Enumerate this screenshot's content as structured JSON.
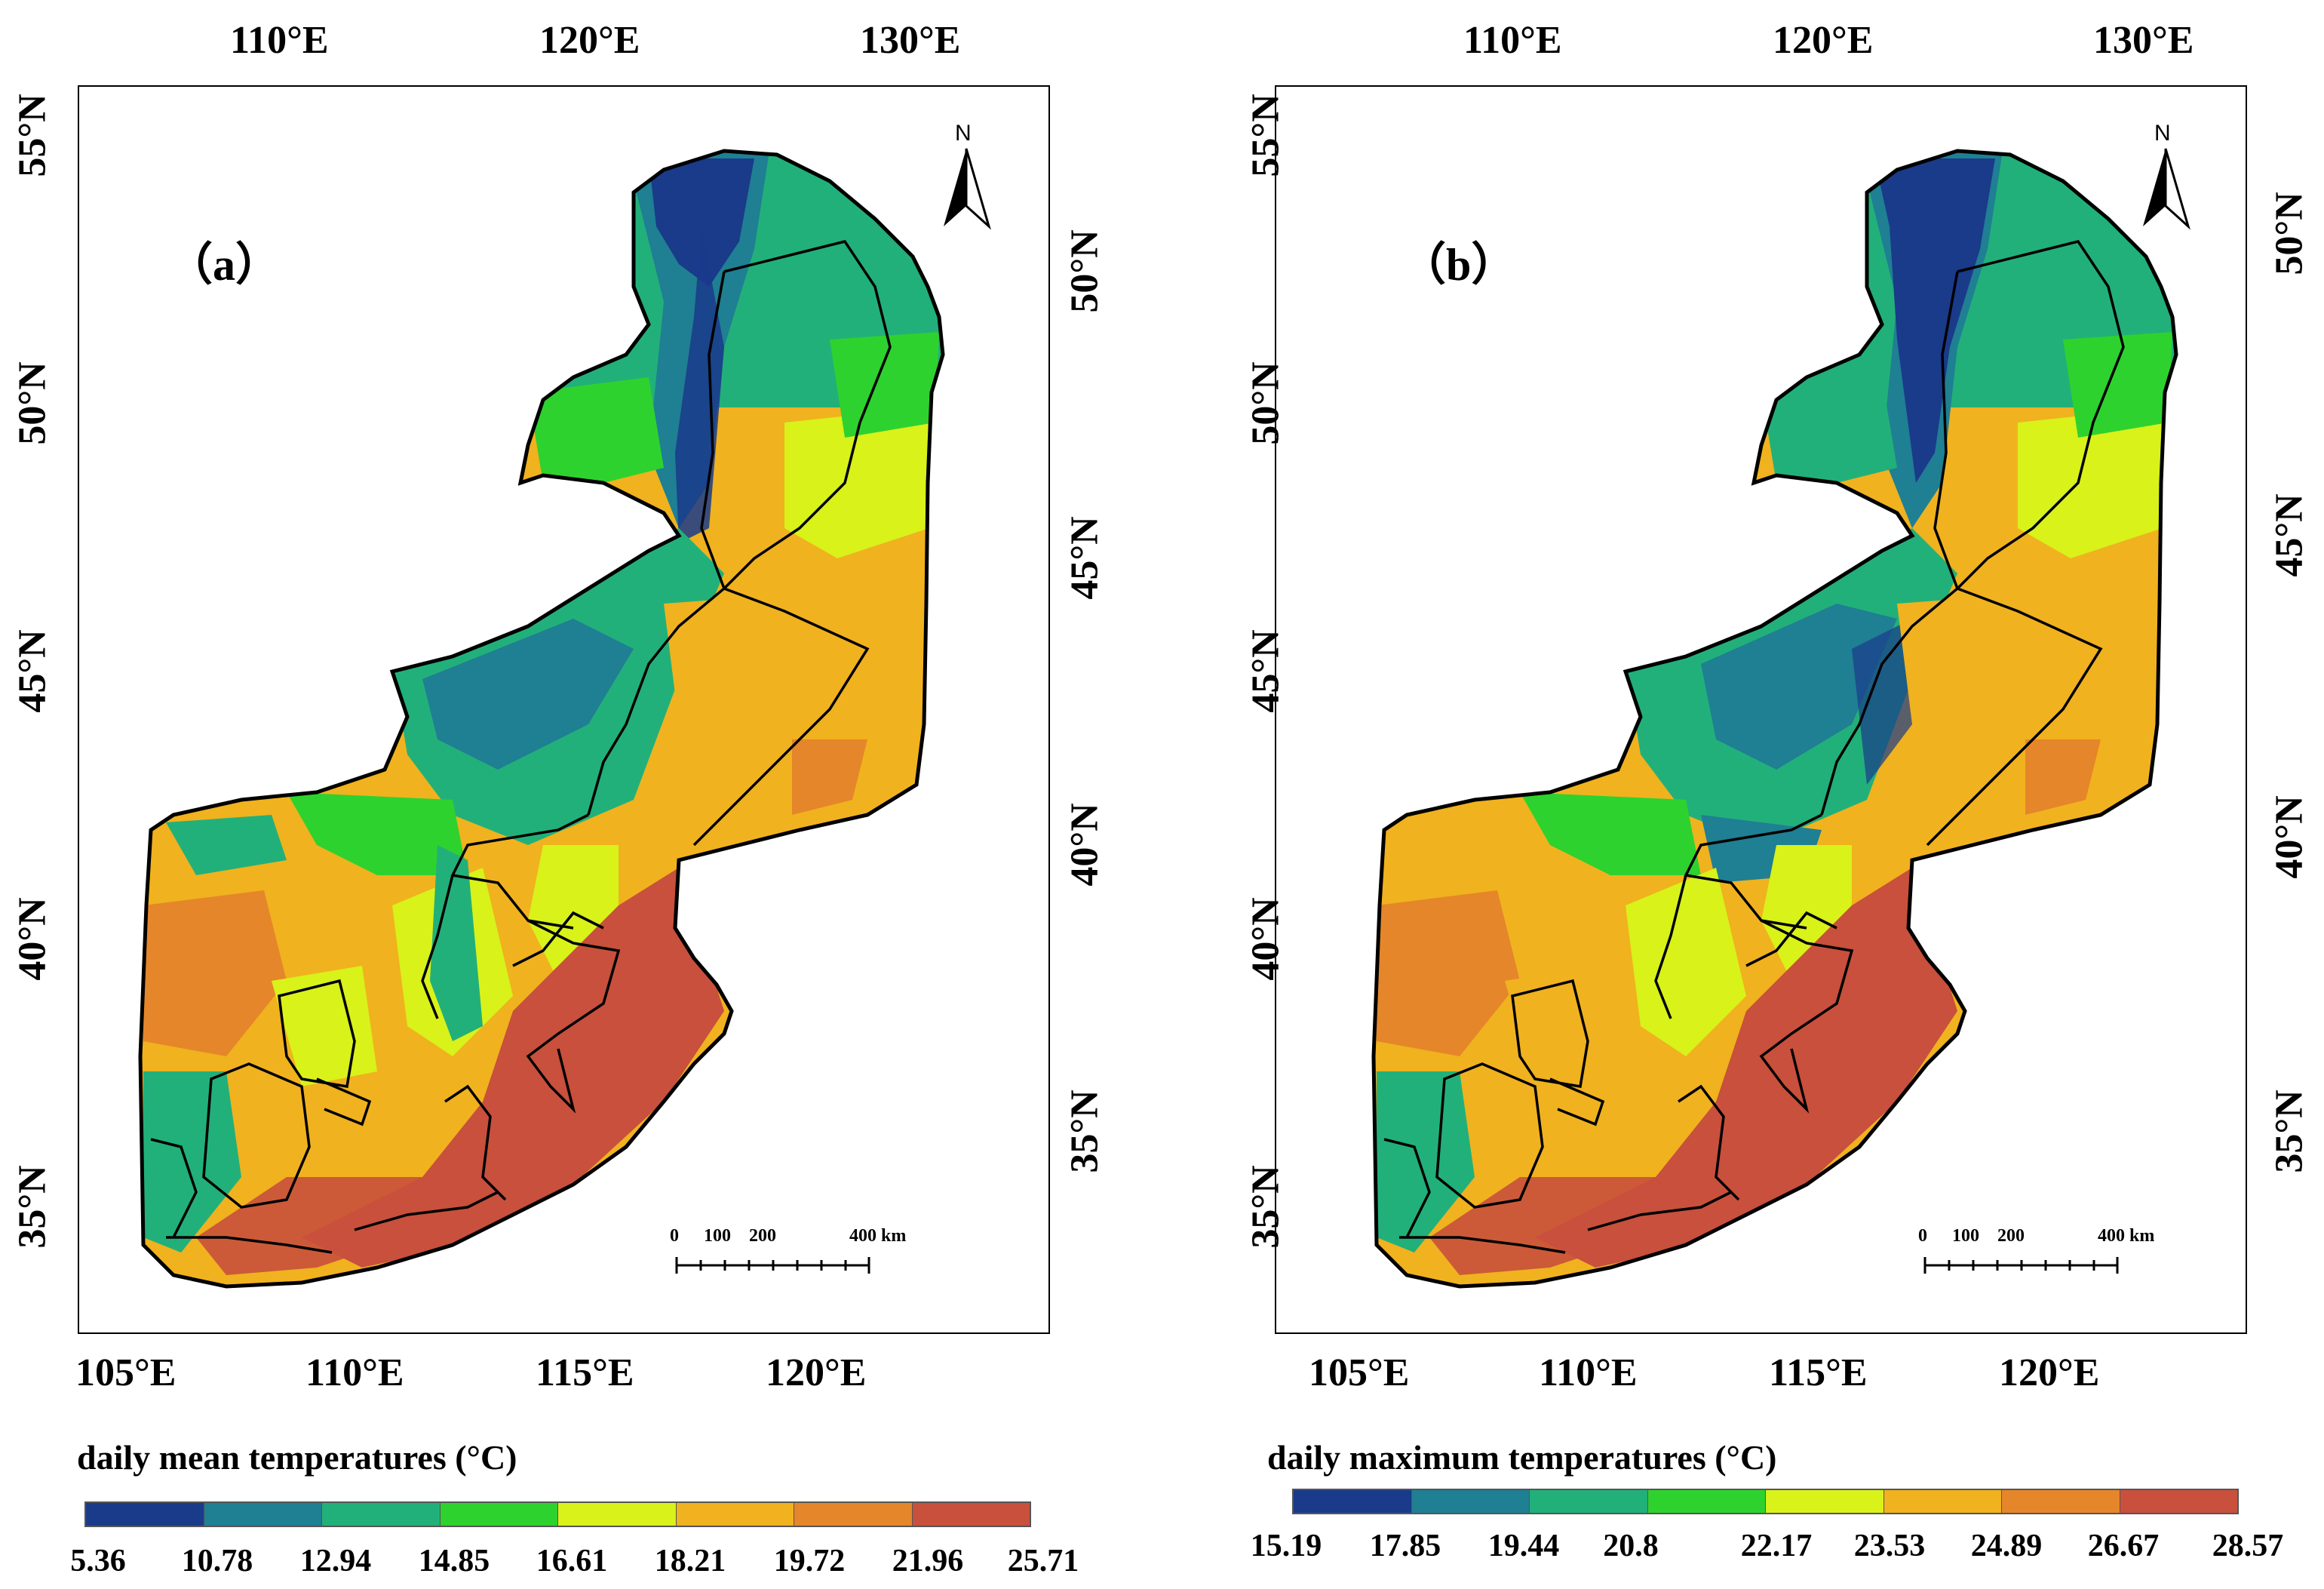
{
  "panels": [
    {
      "label": "（a）",
      "top_lon_ticks": [
        "110°E",
        "120°E",
        "130°E"
      ],
      "bottom_lon_ticks": [
        "105°E",
        "110°E",
        "115°E",
        "120°E"
      ],
      "left_lat_ticks": [
        "55°N",
        "50°N",
        "45°N",
        "40°N",
        "35°N"
      ],
      "right_lat_ticks": [
        "50°N",
        "45°N",
        "40°N",
        "35°N"
      ],
      "north_arrow": "N",
      "scale_bar": {
        "labels": [
          "0",
          "100",
          "200",
          "400 km"
        ]
      },
      "legend": {
        "title": "daily mean temperatures (°C)",
        "values": [
          "5.36",
          "10.78",
          "12.94",
          "14.85",
          "16.61",
          "18.21",
          "19.72",
          "21.96",
          "25.71"
        ]
      }
    },
    {
      "label": "（b）",
      "top_lon_ticks": [
        "110°E",
        "120°E",
        "130°E"
      ],
      "bottom_lon_ticks": [
        "105°E",
        "110°E",
        "115°E",
        "120°E"
      ],
      "left_lat_ticks": [
        "55°N",
        "50°N",
        "45°N",
        "40°N",
        "35°N"
      ],
      "right_lat_ticks": [
        "50°N",
        "45°N",
        "40°N",
        "35°N"
      ],
      "north_arrow": "N",
      "scale_bar": {
        "labels": [
          "0",
          "100",
          "200",
          "400 km"
        ]
      },
      "legend": {
        "title": "daily maximum temperatures (°C)",
        "values": [
          "15.19",
          "17.85",
          "19.44",
          "20.8",
          "22.17",
          "23.53",
          "24.89",
          "26.67",
          "28.57"
        ]
      }
    }
  ],
  "colors": {
    "classes": [
      "#1a3a8a",
      "#1f7f93",
      "#22b07a",
      "#2ed22e",
      "#d8f21a",
      "#f0b21e",
      "#e5862a",
      "#c8503c"
    ],
    "boundary": "#000000"
  }
}
